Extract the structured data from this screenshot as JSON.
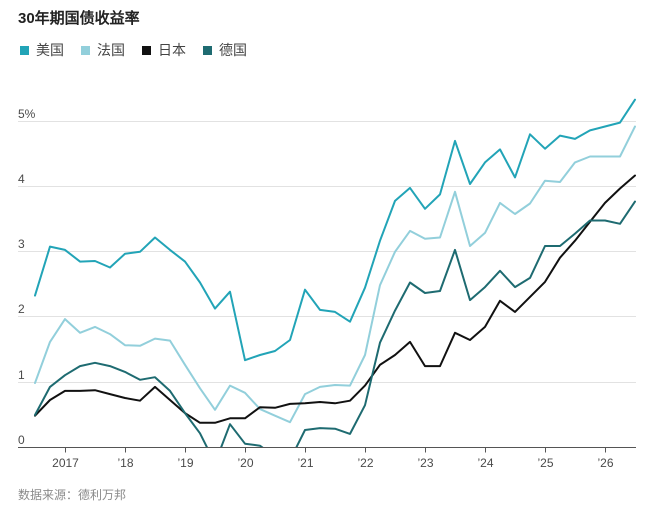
{
  "chart_data": {
    "type": "line",
    "title": "30年期国债收益率",
    "x": [
      "2016-07",
      "2016-10",
      "2017-01",
      "2017-04",
      "2017-07",
      "2017-10",
      "2018-01",
      "2018-04",
      "2018-07",
      "2018-10",
      "2019-01",
      "2019-04",
      "2019-07",
      "2019-10",
      "2020-01",
      "2020-04",
      "2020-07",
      "2020-10",
      "2021-01",
      "2021-04",
      "2021-07",
      "2021-10",
      "2022-01",
      "2022-04",
      "2022-07",
      "2022-10",
      "2023-01",
      "2023-04",
      "2023-07",
      "2023-10",
      "2024-01",
      "2024-04",
      "2024-07",
      "2024-10",
      "2025-01",
      "2025-04",
      "2025-07",
      "2025-10",
      "2026-01",
      "2026-04",
      "2026-07"
    ],
    "series": [
      {
        "name": "美国",
        "color": "#22a4b7",
        "values": [
          2.32,
          3.07,
          3.02,
          2.84,
          2.85,
          2.75,
          2.96,
          2.99,
          3.21,
          3.02,
          2.84,
          2.52,
          2.12,
          2.38,
          1.33,
          1.41,
          1.47,
          1.64,
          2.41,
          2.1,
          2.07,
          1.92,
          2.44,
          3.16,
          3.77,
          3.97,
          3.65,
          3.87,
          4.69,
          4.03,
          4.36,
          4.56,
          4.13,
          4.79,
          4.57,
          4.77,
          4.72,
          4.85,
          4.91,
          4.97,
          5.32
        ]
      },
      {
        "name": "法国",
        "color": "#92cfdb",
        "values": [
          0.98,
          1.61,
          1.96,
          1.75,
          1.84,
          1.73,
          1.56,
          1.55,
          1.66,
          1.63,
          1.26,
          0.9,
          0.57,
          0.94,
          0.83,
          0.58,
          0.48,
          0.38,
          0.81,
          0.92,
          0.95,
          0.94,
          1.41,
          2.48,
          2.99,
          3.31,
          3.19,
          3.21,
          3.91,
          3.08,
          3.28,
          3.74,
          3.57,
          3.73,
          4.08,
          4.06,
          4.36,
          4.45,
          4.45,
          4.45,
          4.91
        ]
      },
      {
        "name": "日本",
        "color": "#111111",
        "values": [
          0.48,
          0.72,
          0.86,
          0.86,
          0.87,
          0.81,
          0.75,
          0.71,
          0.92,
          0.72,
          0.52,
          0.37,
          0.37,
          0.44,
          0.44,
          0.61,
          0.6,
          0.66,
          0.67,
          0.69,
          0.67,
          0.71,
          0.94,
          1.26,
          1.41,
          1.61,
          1.24,
          1.24,
          1.75,
          1.64,
          1.84,
          2.24,
          2.07,
          2.3,
          2.53,
          2.9,
          3.16,
          3.45,
          3.74,
          3.96,
          4.16
        ]
      },
      {
        "name": "德国",
        "color": "#1e6b71",
        "values": [
          0.49,
          0.92,
          1.1,
          1.24,
          1.29,
          1.24,
          1.15,
          1.03,
          1.07,
          0.86,
          0.52,
          0.21,
          -0.25,
          0.35,
          0.05,
          0.02,
          -0.15,
          -0.2,
          0.26,
          0.29,
          0.28,
          0.2,
          0.64,
          1.6,
          2.09,
          2.52,
          2.36,
          2.39,
          3.02,
          2.25,
          2.45,
          2.7,
          2.45,
          2.59,
          3.08,
          3.08,
          3.27,
          3.47,
          3.47,
          3.42,
          3.76
        ]
      }
    ],
    "yticks": {
      "values": [
        0,
        1,
        2,
        3,
        4,
        5
      ],
      "labels": [
        "0",
        "1",
        "2",
        "3",
        "4",
        "5%"
      ]
    },
    "xticks": {
      "values": [
        "2017-01",
        "2018-01",
        "2019-01",
        "2020-01",
        "2021-01",
        "2022-01",
        "2023-01",
        "2024-01",
        "2025-01",
        "2026-01"
      ],
      "labels": [
        "2017",
        "’18",
        "’19",
        "’20",
        "’21",
        "’22",
        "’23",
        "’24",
        "’25",
        "’26"
      ]
    },
    "xlim": [
      "2016-07",
      "2026-07"
    ],
    "ylim": [
      0,
      5.5
    ],
    "grid": true,
    "legend": "top-left",
    "source": "数据来源：德利万邦"
  }
}
